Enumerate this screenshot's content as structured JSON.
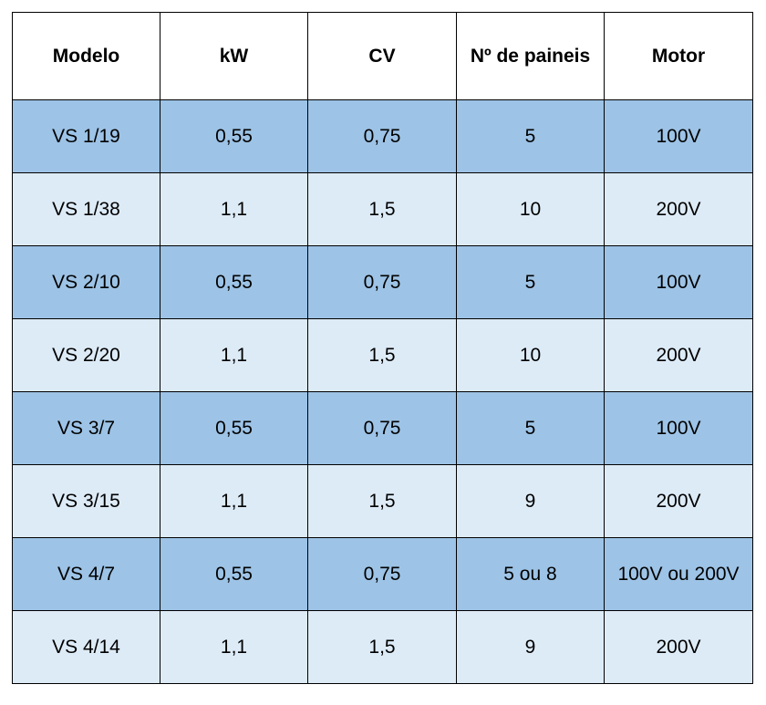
{
  "table": {
    "headers": [
      "Modelo",
      "kW",
      "CV",
      "Nº de paineis",
      "Motor"
    ],
    "rows": [
      [
        "VS 1/19",
        "0,55",
        "0,75",
        "5",
        "100V"
      ],
      [
        "VS 1/38",
        "1,1",
        "1,5",
        "10",
        "200V"
      ],
      [
        "VS 2/10",
        "0,55",
        "0,75",
        "5",
        "100V"
      ],
      [
        "VS 2/20",
        "1,1",
        "1,5",
        "10",
        "200V"
      ],
      [
        "VS 3/7",
        "0,55",
        "0,75",
        "5",
        "100V"
      ],
      [
        "VS 3/15",
        "1,1",
        "1,5",
        "9",
        "200V"
      ],
      [
        "VS 4/7",
        "0,55",
        "0,75",
        "5 ou 8",
        "100V ou 200V"
      ],
      [
        "VS 4/14",
        "1,1",
        "1,5",
        "9",
        "200V"
      ]
    ]
  },
  "colors": {
    "row_dark": "#9dc3e6",
    "row_light": "#ddebf7",
    "header_bg": "#ffffff",
    "border": "#000000"
  }
}
